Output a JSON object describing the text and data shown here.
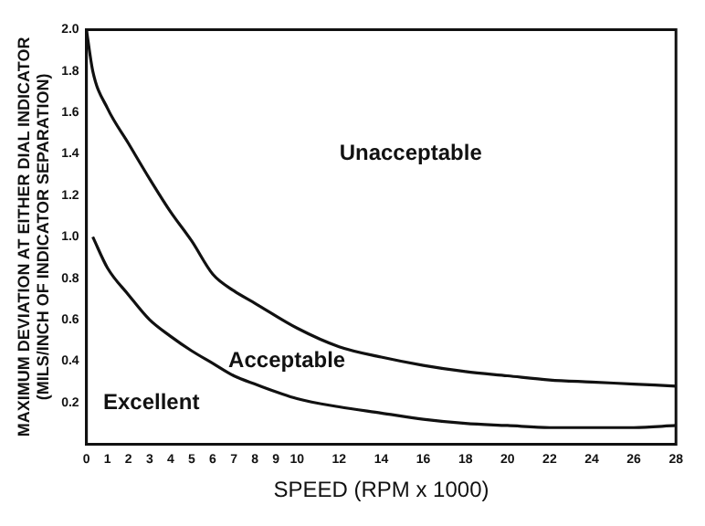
{
  "chart_data": {
    "type": "line",
    "xlabel": "SPEED (RPM x 1000)",
    "ylabel": "MAXIMUM DEVIATION AT EITHER DIAL INDICATOR\n(MILS/INCH OF INDICATOR SEPARATION)",
    "series": [
      {
        "color": "#111111",
        "x": [
          0,
          0.3,
          1,
          2,
          3,
          4,
          5,
          6,
          7,
          8,
          10,
          12,
          14,
          16,
          18,
          20,
          22,
          24,
          26,
          28
        ],
        "values": [
          2.0,
          1.8,
          1.62,
          1.45,
          1.28,
          1.12,
          0.98,
          0.82,
          0.74,
          0.68,
          0.56,
          0.47,
          0.42,
          0.38,
          0.35,
          0.33,
          0.31,
          0.3,
          0.29,
          0.28
        ]
      },
      {
        "color": "#111111",
        "x": [
          0.3,
          1,
          2,
          3,
          4,
          5,
          6,
          7,
          8,
          10,
          12,
          14,
          16,
          18,
          20,
          22,
          24,
          26,
          28
        ],
        "values": [
          1.0,
          0.85,
          0.72,
          0.6,
          0.52,
          0.45,
          0.39,
          0.33,
          0.29,
          0.22,
          0.18,
          0.15,
          0.12,
          0.1,
          0.09,
          0.08,
          0.08,
          0.08,
          0.09
        ]
      }
    ],
    "xlim": [
      0,
      28
    ],
    "xticks": [
      0,
      1,
      2,
      3,
      4,
      5,
      6,
      7,
      8,
      9,
      10,
      12,
      14,
      16,
      18,
      20,
      22,
      24,
      26,
      28
    ],
    "ylim": [
      0,
      2
    ],
    "yticks": [
      0.2,
      0.4,
      0.6,
      0.8,
      {
        "value": 1,
        "label": "1.0"
      },
      1.2,
      1.4,
      1.6,
      1.8,
      {
        "value": 2,
        "label": "2.0"
      }
    ],
    "annotations": [
      "Unacceptable",
      "Acceptable",
      "Excellent"
    ],
    "grid": false,
    "legend": false,
    "marker": "none",
    "line_style": "solid"
  }
}
